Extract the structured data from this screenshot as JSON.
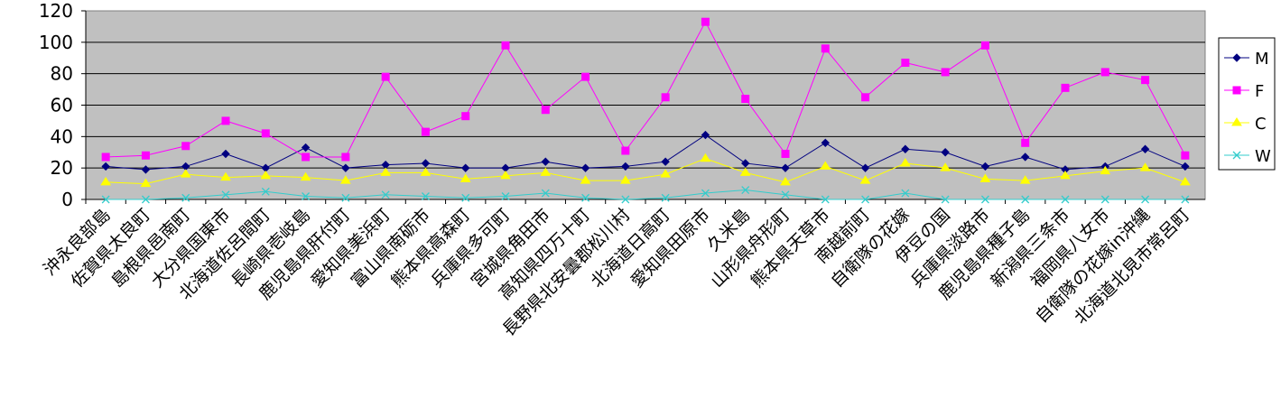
{
  "chart_data": {
    "type": "line",
    "categories": [
      "沖永良部島",
      "佐賀県太良町",
      "島根県邑南町",
      "大分県国東市",
      "北海道佐呂間町",
      "長崎県壱岐島",
      "鹿児島県肝付町",
      "愛知県美浜町",
      "富山県南砺市",
      "熊本県高森町",
      "兵庫県多可町",
      "宮城県角田市",
      "高知県四万十町",
      "長野県北安曇郡松川村",
      "北海道日高町",
      "愛知県田原市",
      "久米島",
      "山形県舟形町",
      "熊本県天草市",
      "南越前町",
      "自衛隊の花嫁",
      "伊豆の国",
      "兵庫県淡路市",
      "鹿児島県種子島",
      "新潟県三条市",
      "福岡県八女市",
      "自衛隊の花嫁in沖縄",
      "北海道北見市常呂町"
    ],
    "series": [
      {
        "name": "M",
        "color": "#000080",
        "marker": "diamond",
        "values": [
          21,
          19,
          21,
          29,
          20,
          33,
          20,
          22,
          23,
          20,
          20,
          24,
          20,
          21,
          24,
          41,
          23,
          20,
          36,
          20,
          32,
          30,
          21,
          27,
          19,
          21,
          32,
          21
        ]
      },
      {
        "name": "F",
        "color": "#ff00ff",
        "marker": "square",
        "values": [
          27,
          28,
          34,
          50,
          42,
          27,
          27,
          78,
          43,
          53,
          98,
          57,
          78,
          31,
          65,
          113,
          64,
          29,
          96,
          65,
          87,
          81,
          98,
          36,
          71,
          81,
          76,
          28
        ]
      },
      {
        "name": "C",
        "color": "#ffff00",
        "marker": "triangle",
        "values": [
          11,
          10,
          16,
          14,
          15,
          14,
          12,
          17,
          17,
          13,
          15,
          17,
          12,
          12,
          16,
          26,
          17,
          11,
          21,
          12,
          23,
          20,
          13,
          12,
          15,
          18,
          20,
          11
        ]
      },
      {
        "name": "W",
        "color": "#33cccc",
        "marker": "x",
        "values": [
          0,
          0,
          1,
          3,
          5,
          2,
          1,
          3,
          2,
          1,
          2,
          4,
          1,
          0,
          1,
          4,
          6,
          3,
          0,
          0,
          4,
          0,
          0,
          0,
          0,
          0,
          0,
          0
        ]
      }
    ],
    "ylim": [
      0,
      120
    ],
    "yticks": [
      0,
      20,
      40,
      60,
      80,
      100,
      120
    ],
    "grid": true,
    "legend_position": "right",
    "plot_background": "#c0c0c0",
    "title": "",
    "xlabel": "",
    "ylabel": ""
  }
}
